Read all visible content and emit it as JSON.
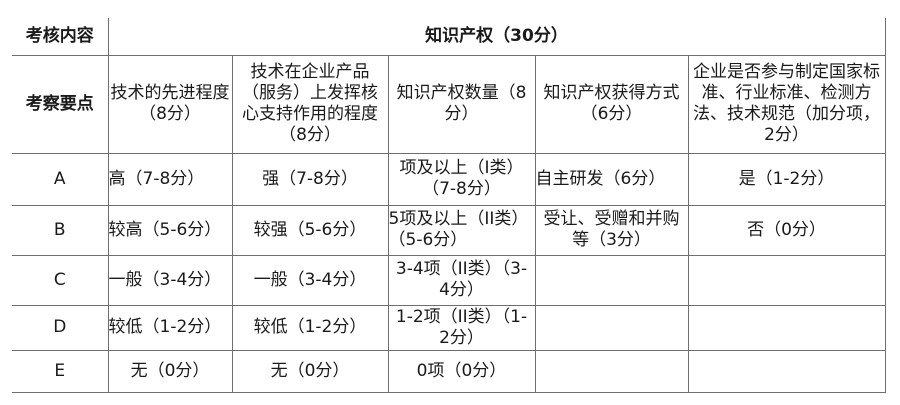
{
  "header": {
    "content_label": "考核内容",
    "content_value": "知识产权（30分）",
    "points_label": "考察要点",
    "columns": [
      "技术的先进程度（8分）",
      "技术在企业产品（服务）上发挥核心支持作用的程度（8分）",
      "知识产权数量（8分）",
      "知识产权获得方式（6分）",
      "企业是否参与制定国家标准、行业标准、检测方法、技术规范（加分项，2分）"
    ]
  },
  "rows": [
    {
      "grade": "A",
      "cells": [
        "高（7-8分）",
        "强（7-8分）",
        "项及以上（I类）（7-8分）",
        "自主研发（6分）",
        "是（1-2分）"
      ]
    },
    {
      "grade": "B",
      "cells": [
        "较高（5-6分）",
        "较强（5-6分）",
        "5项及以上（II类）（5-6分）",
        "受让、受赠和并购等（3分）",
        "否（0分）"
      ]
    },
    {
      "grade": "C",
      "cells": [
        "一般（3-4分）",
        "一般（3-4分）",
        "3-4项（II类）（3-4分）",
        "",
        ""
      ]
    },
    {
      "grade": "D",
      "cells": [
        "较低（1-2分）",
        "较低（1-2分）",
        "1-2项（II类）（1-2分）",
        "",
        ""
      ]
    },
    {
      "grade": "E",
      "cells": [
        "无（0分）",
        "无（0分）",
        "0项（0分）",
        "",
        ""
      ]
    }
  ]
}
